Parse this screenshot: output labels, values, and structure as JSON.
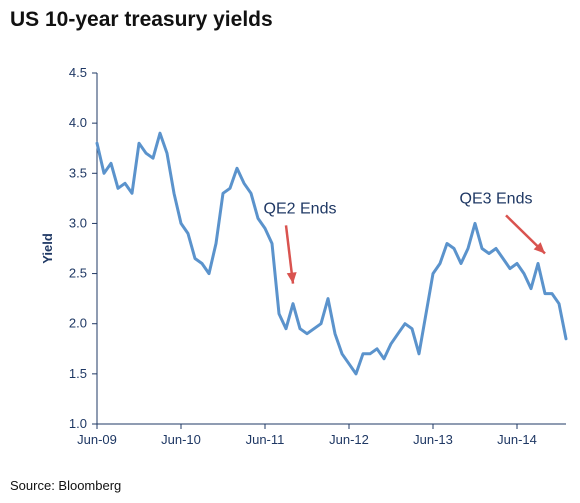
{
  "title": "US 10-year treasury yields",
  "source": "Source: Bloomberg",
  "colors": {
    "line": "#5b93cc",
    "arrow": "#d9534f",
    "axis": "#1f3864"
  },
  "chart_data": {
    "type": "line",
    "title": "US 10-year treasury yields",
    "ylabel": "Yield",
    "xlabel": "",
    "ylim": [
      1.0,
      4.5
    ],
    "yticks": [
      1.0,
      1.5,
      2.0,
      2.5,
      3.0,
      3.5,
      4.0,
      4.5
    ],
    "ytick_labels": [
      "1.0",
      "1.5",
      "2.0",
      "2.5",
      "3.0",
      "3.5",
      "4.0",
      "4.5"
    ],
    "xlim": [
      "2009-06",
      "2015-01"
    ],
    "xticks": [
      "2009-06",
      "2010-06",
      "2011-06",
      "2012-06",
      "2013-06",
      "2014-06"
    ],
    "xtick_labels": [
      "Jun-09",
      "Jun-10",
      "Jun-11",
      "Jun-12",
      "Jun-13",
      "Jun-14"
    ],
    "grid": false,
    "series": [
      {
        "x": [
          "2009-06",
          "2009-07",
          "2009-08",
          "2009-09",
          "2009-10",
          "2009-11",
          "2009-12",
          "2010-01",
          "2010-02",
          "2010-03",
          "2010-04",
          "2010-05",
          "2010-06",
          "2010-07",
          "2010-08",
          "2010-09",
          "2010-10",
          "2010-11",
          "2010-12",
          "2011-01",
          "2011-02",
          "2011-03",
          "2011-04",
          "2011-05",
          "2011-06",
          "2011-07",
          "2011-08",
          "2011-09",
          "2011-10",
          "2011-11",
          "2011-12",
          "2012-01",
          "2012-02",
          "2012-03",
          "2012-04",
          "2012-05",
          "2012-06",
          "2012-07",
          "2012-08",
          "2012-09",
          "2012-10",
          "2012-11",
          "2012-12",
          "2013-01",
          "2013-02",
          "2013-03",
          "2013-04",
          "2013-05",
          "2013-06",
          "2013-07",
          "2013-08",
          "2013-09",
          "2013-10",
          "2013-11",
          "2013-12",
          "2014-01",
          "2014-02",
          "2014-03",
          "2014-04",
          "2014-05",
          "2014-06",
          "2014-07",
          "2014-08",
          "2014-09",
          "2014-10",
          "2014-11",
          "2014-12",
          "2015-01"
        ],
        "y": [
          3.8,
          3.5,
          3.6,
          3.35,
          3.4,
          3.3,
          3.8,
          3.7,
          3.65,
          3.9,
          3.7,
          3.3,
          3.0,
          2.9,
          2.65,
          2.6,
          2.5,
          2.8,
          3.3,
          3.35,
          3.55,
          3.4,
          3.3,
          3.05,
          2.95,
          2.8,
          2.1,
          1.95,
          2.2,
          1.95,
          1.9,
          1.95,
          2.0,
          2.25,
          1.9,
          1.7,
          1.6,
          1.5,
          1.7,
          1.7,
          1.75,
          1.65,
          1.8,
          1.9,
          2.0,
          1.95,
          1.7,
          2.1,
          2.5,
          2.6,
          2.8,
          2.75,
          2.6,
          2.75,
          3.0,
          2.75,
          2.7,
          2.75,
          2.65,
          2.55,
          2.6,
          2.5,
          2.35,
          2.6,
          2.3,
          2.3,
          2.2,
          1.85
        ]
      }
    ],
    "annotations": [
      {
        "text": "QE2 Ends",
        "x": "2011-11",
        "y": 3.1,
        "arrow_to": {
          "x": "2011-10",
          "y": 2.4
        }
      },
      {
        "text": "QE3 Ends",
        "x": "2014-03",
        "y": 3.2,
        "arrow_to": {
          "x": "2014-10",
          "y": 2.7
        }
      }
    ]
  }
}
